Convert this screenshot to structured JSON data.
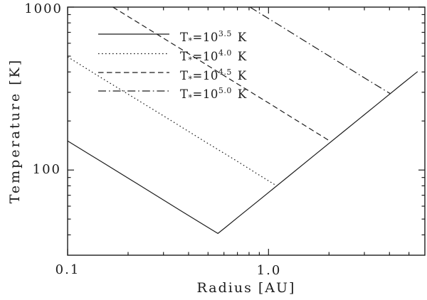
{
  "colors": {
    "foreground": "#1c1c1c",
    "background": "#ffffff"
  },
  "chart_data": {
    "type": "line",
    "title": "",
    "xlabel": "Radius [AU]",
    "ylabel": "Temperature [K]",
    "xscale": "log",
    "yscale": "log",
    "xlim": [
      0.1,
      6.0
    ],
    "ylim": [
      30,
      1000
    ],
    "grid": false,
    "legend_position": "upper-left-inside",
    "x_major_ticks": [
      0.1,
      1.0
    ],
    "x_tick_labels": [
      "0.1",
      "1.0"
    ],
    "x_minor_ticks": [
      0.2,
      0.3,
      0.4,
      0.5,
      0.6,
      0.7,
      0.8,
      0.9,
      2,
      3,
      4,
      5
    ],
    "y_major_ticks": [
      100,
      1000
    ],
    "y_tick_labels": [
      "100",
      "1000"
    ],
    "y_minor_ticks": [
      40,
      50,
      60,
      70,
      80,
      90,
      200,
      300,
      400,
      500,
      600,
      700,
      800,
      900
    ],
    "series": [
      {
        "name": "T*=10^3.5 K",
        "style": "solid",
        "points": [
          [
            0.1,
            151
          ],
          [
            0.15,
            111
          ],
          [
            0.22,
            82.9
          ],
          [
            0.32,
            62.3
          ],
          [
            0.44,
            48.9
          ],
          [
            0.52,
            43.1
          ],
          [
            0.56,
            40.8
          ],
          [
            0.61,
            44.4
          ],
          [
            0.7,
            51.0
          ],
          [
            0.9,
            65.5
          ],
          [
            1.2,
            87.4
          ],
          [
            1.7,
            124
          ],
          [
            2.4,
            175
          ],
          [
            3.4,
            248
          ],
          [
            4.5,
            328
          ],
          [
            5.52,
            402
          ]
        ]
      },
      {
        "name": "T*=10^4.0 K",
        "style": "dotted",
        "points": [
          [
            0.1,
            495
          ],
          [
            0.15,
            363
          ],
          [
            0.22,
            272
          ],
          [
            0.33,
            200
          ],
          [
            0.48,
            150
          ],
          [
            0.7,
            113
          ],
          [
            0.9,
            93.0
          ],
          [
            1.1,
            79.9
          ]
        ]
      },
      {
        "name": "T*=10^4.5 K",
        "style": "dashed",
        "points": [
          [
            0.168,
            1000
          ],
          [
            0.25,
            740
          ],
          [
            0.4,
            518
          ],
          [
            0.63,
            366
          ],
          [
            1.0,
            258
          ],
          [
            1.45,
            194
          ],
          [
            2.05,
            149
          ]
        ]
      },
      {
        "name": "T*=10^5.0 K",
        "style": "dashdot",
        "points": [
          [
            0.808,
            1000
          ],
          [
            1.1,
            791
          ],
          [
            1.6,
            594
          ],
          [
            2.3,
            451
          ],
          [
            3.1,
            359
          ],
          [
            4.04,
            294
          ]
        ]
      }
    ]
  },
  "legend": {
    "entries": [
      {
        "style": "solid",
        "prefix": "T",
        "sub": "*",
        "mid": "=10",
        "sup": "3.5",
        "suffix": "K"
      },
      {
        "style": "dotted",
        "prefix": "T",
        "sub": "*",
        "mid": "=10",
        "sup": "4.0",
        "suffix": "K"
      },
      {
        "style": "dashed",
        "prefix": "T",
        "sub": "*",
        "mid": "=10",
        "sup": "4.5",
        "suffix": "K"
      },
      {
        "style": "dashdot",
        "prefix": "T",
        "sub": "*",
        "mid": "=10",
        "sup": "5.0",
        "suffix": "K"
      }
    ]
  }
}
